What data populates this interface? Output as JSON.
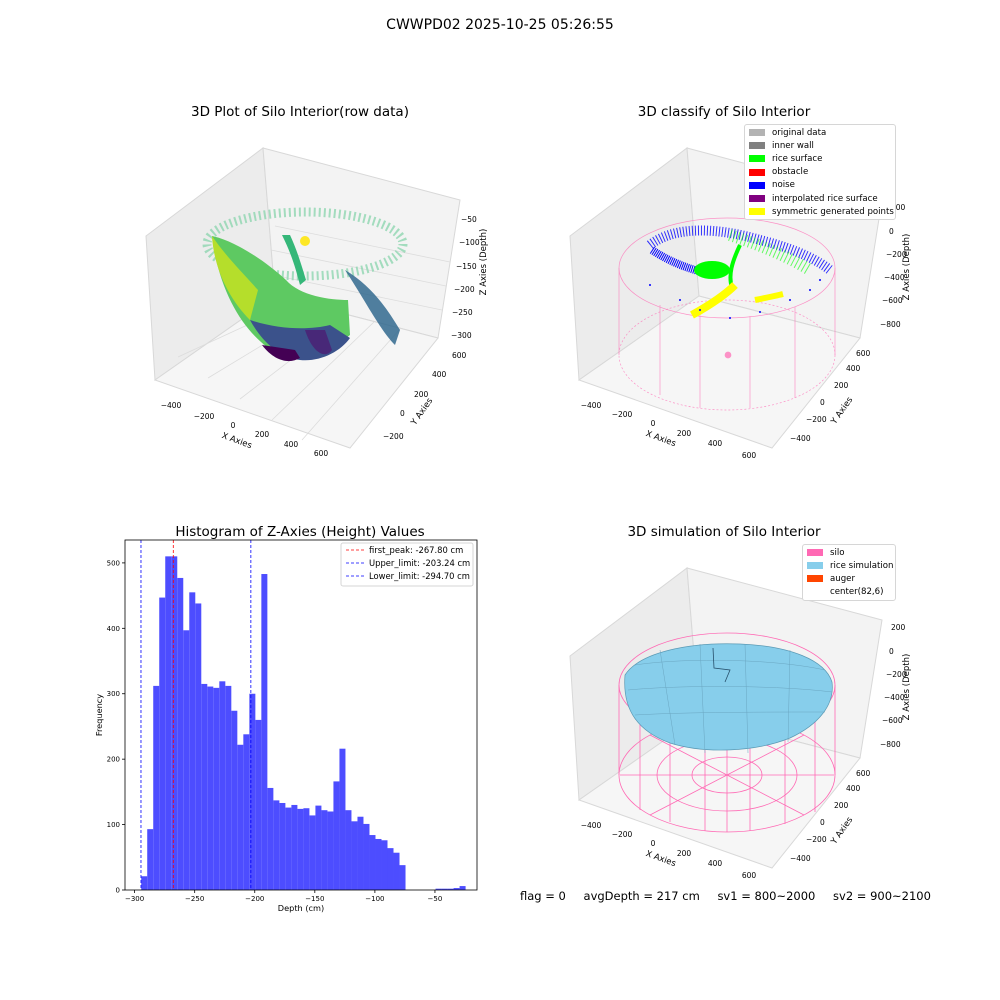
{
  "figure": {
    "title": "CWWPD02 2025-10-25 05:26:55",
    "footer": {
      "flag": "flag = 0",
      "avg_depth": "avgDepth = 217 cm",
      "sv1": "sv1 = 800~2000",
      "sv2": "sv2 = 900~2100"
    }
  },
  "panel_raw": {
    "title": "3D Plot of Silo Interior(row data)",
    "xlabel": "X Axies",
    "ylabel": "Y Axies",
    "zlabel": "Z Axies (Depth)",
    "x_ticks": [
      "−400",
      "−200",
      "0",
      "200",
      "400",
      "600"
    ],
    "y_ticks": [
      "−200",
      "0",
      "200",
      "400",
      "600"
    ],
    "z_ticks": [
      "−50",
      "−100",
      "−150",
      "−200",
      "−250",
      "−300"
    ]
  },
  "panel_classify": {
    "title": "3D classify of Silo Interior",
    "xlabel": "X Axies",
    "ylabel": "Y Axies",
    "zlabel": "Z Axies (Depth)",
    "x_ticks": [
      "−400",
      "−200",
      "0",
      "200",
      "400",
      "600"
    ],
    "y_ticks": [
      "−400",
      "−200",
      "0",
      "200",
      "400",
      "600"
    ],
    "z_ticks": [
      "200",
      "0",
      "−200",
      "−400",
      "−600",
      "−800"
    ],
    "legend": [
      {
        "label": "original data",
        "color": "#b3b3b3"
      },
      {
        "label": "inner wall",
        "color": "#808080"
      },
      {
        "label": "rice surface",
        "color": "#00ff00"
      },
      {
        "label": "obstacle",
        "color": "#ff0000"
      },
      {
        "label": "noise",
        "color": "#0000ff"
      },
      {
        "label": "interpolated rice surface",
        "color": "#800080"
      },
      {
        "label": "symmetric generated points",
        "color": "#ffff00"
      }
    ]
  },
  "panel_sim": {
    "title": "3D simulation of Silo Interior",
    "xlabel": "X Axies",
    "ylabel": "Y Axies",
    "zlabel": "Z Axies (Depth)",
    "x_ticks": [
      "−400",
      "−200",
      "0",
      "200",
      "400",
      "600"
    ],
    "y_ticks": [
      "−400",
      "−200",
      "0",
      "200",
      "400",
      "600"
    ],
    "z_ticks": [
      "200",
      "0",
      "−200",
      "−400",
      "−600",
      "−800"
    ],
    "legend": [
      {
        "label": "silo",
        "color": "#ff69b4"
      },
      {
        "label": "rice simulation",
        "color": "#87ceeb"
      },
      {
        "label": "auger",
        "color": "#ff4500"
      },
      {
        "label": "center(82,6)",
        "color": ""
      }
    ]
  },
  "chart_data": {
    "type": "bar",
    "title": "Histogram of Z-Axies (Height) Values",
    "xlabel": "Depth (cm)",
    "ylabel": "Frequency",
    "xlim": [
      -308,
      -15
    ],
    "ylim": [
      0,
      535
    ],
    "x_ticks": [
      -300,
      -250,
      -200,
      -150,
      -100,
      -50
    ],
    "y_ticks": [
      0,
      100,
      200,
      300,
      400,
      500
    ],
    "bar_color": "#4d4dff",
    "bin_width": 5,
    "bins_start": [
      -299.5,
      -294.5,
      -289.5,
      -284.5,
      -279.5,
      -274.5,
      -269.5,
      -264.5,
      -259.5,
      -254.5,
      -249.5,
      -244.5,
      -239.5,
      -234.5,
      -229.5,
      -224.5,
      -219.5,
      -214.5,
      -209.5,
      -204.5,
      -199.5,
      -194.5,
      -189.5,
      -184.5,
      -179.5,
      -174.5,
      -169.5,
      -164.5,
      -159.5,
      -154.5,
      -149.5,
      -144.5,
      -139.5,
      -134.5,
      -129.5,
      -124.5,
      -119.5,
      -114.5,
      -109.5,
      -104.5,
      -99.5,
      -94.5,
      -89.5,
      -84.5,
      -79.5,
      -74.5,
      -69.5,
      -64.5,
      -59.5,
      -54.5,
      -49.5,
      -44.5,
      -39.5,
      -34.5,
      -29.5
    ],
    "values": [
      0,
      21,
      93,
      312,
      447,
      510,
      510,
      477,
      397,
      455,
      438,
      315,
      311,
      309,
      319,
      312,
      274,
      222,
      238,
      300,
      260,
      483,
      156,
      137,
      133,
      126,
      130,
      124,
      125,
      114,
      129,
      122,
      120,
      166,
      216,
      122,
      105,
      112,
      101,
      84,
      78,
      76,
      64,
      57,
      38,
      0,
      0,
      0,
      0,
      0,
      2,
      2,
      2,
      3,
      6
    ],
    "vlines": [
      {
        "label": "first_peak: -267.80 cm",
        "x": -267.8,
        "color": "#ff0000"
      },
      {
        "label": "Upper_limit: -203.24 cm",
        "x": -203.24,
        "color": "#0000ff"
      },
      {
        "label": "Lower_limit: -294.70 cm",
        "x": -294.7,
        "color": "#0000ff"
      }
    ],
    "legend_position": "top-right",
    "grid": false
  }
}
